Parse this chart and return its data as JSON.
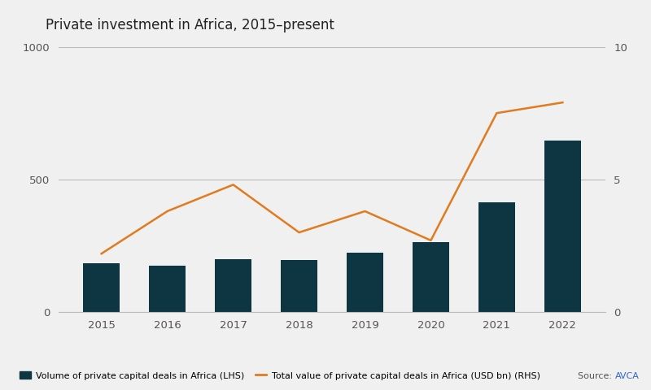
{
  "title": "Private investment in Africa, 2015–present",
  "years": [
    2015,
    2016,
    2017,
    2018,
    2019,
    2020,
    2021,
    2022
  ],
  "bar_values": [
    185,
    175,
    200,
    195,
    225,
    265,
    415,
    645
  ],
  "line_values": [
    2.2,
    3.8,
    4.8,
    3.0,
    3.8,
    2.7,
    7.5,
    7.9
  ],
  "bar_color": "#0d3542",
  "line_color": "#e07b20",
  "lhs_ylim": [
    0,
    1000
  ],
  "rhs_ylim": [
    0,
    10
  ],
  "lhs_yticks": [
    0,
    500,
    1000
  ],
  "rhs_yticks": [
    0,
    5,
    10
  ],
  "background_color": "#f0f0f0",
  "plot_bg_color": "#f0f0f0",
  "grid_color": "#bbbbbb",
  "title_fontsize": 12,
  "tick_fontsize": 9.5,
  "legend_label_bar": "Volume of private capital deals in Africa (LHS)",
  "legend_label_line": "Total value of private capital deals in Africa (USD bn) (RHS)",
  "source_text": "Source: ",
  "source_link_text": "AVCA"
}
